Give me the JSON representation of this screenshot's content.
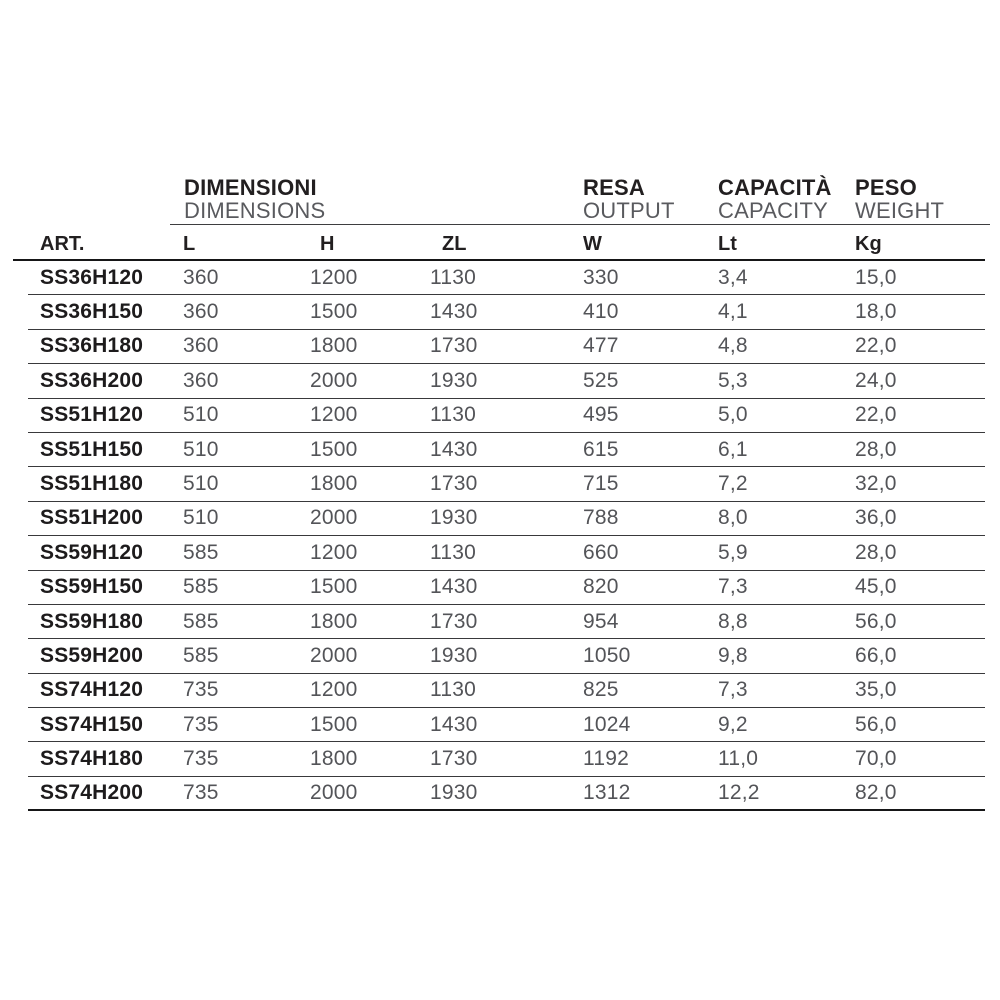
{
  "colors": {
    "background": "#ffffff",
    "text_dark": "#221f20",
    "text_gray": "#595a5e",
    "rule_dark": "#161617",
    "rule_thin": "#39393b"
  },
  "table": {
    "column_groups": [
      {
        "title": "DIMENSIONI",
        "subtitle": "DIMENSIONS"
      },
      {
        "title": "RESA",
        "subtitle": "OUTPUT"
      },
      {
        "title": "CAPACITÀ",
        "subtitle": "CAPACITY"
      },
      {
        "title": "PESO",
        "subtitle": "WEIGHT"
      }
    ],
    "columns": [
      "ART.",
      "L",
      "H",
      "ZL",
      "W",
      "Lt",
      "Kg"
    ],
    "rows": [
      {
        "art": "SS36H120",
        "l": "360",
        "h": "1200",
        "zl": "1130",
        "w": "330",
        "lt": "3,4",
        "kg": "15,0"
      },
      {
        "art": "SS36H150",
        "l": "360",
        "h": "1500",
        "zl": "1430",
        "w": "410",
        "lt": "4,1",
        "kg": "18,0"
      },
      {
        "art": "SS36H180",
        "l": "360",
        "h": "1800",
        "zl": "1730",
        "w": "477",
        "lt": "4,8",
        "kg": "22,0"
      },
      {
        "art": "SS36H200",
        "l": "360",
        "h": "2000",
        "zl": "1930",
        "w": "525",
        "lt": "5,3",
        "kg": "24,0"
      },
      {
        "art": "SS51H120",
        "l": "510",
        "h": "1200",
        "zl": "1130",
        "w": "495",
        "lt": "5,0",
        "kg": "22,0"
      },
      {
        "art": "SS51H150",
        "l": "510",
        "h": "1500",
        "zl": "1430",
        "w": "615",
        "lt": "6,1",
        "kg": "28,0"
      },
      {
        "art": "SS51H180",
        "l": "510",
        "h": "1800",
        "zl": "1730",
        "w": "715",
        "lt": "7,2",
        "kg": "32,0"
      },
      {
        "art": "SS51H200",
        "l": "510",
        "h": "2000",
        "zl": "1930",
        "w": "788",
        "lt": "8,0",
        "kg": "36,0"
      },
      {
        "art": "SS59H120",
        "l": "585",
        "h": "1200",
        "zl": "1130",
        "w": "660",
        "lt": "5,9",
        "kg": "28,0"
      },
      {
        "art": "SS59H150",
        "l": "585",
        "h": "1500",
        "zl": "1430",
        "w": "820",
        "lt": "7,3",
        "kg": "45,0"
      },
      {
        "art": "SS59H180",
        "l": "585",
        "h": "1800",
        "zl": "1730",
        "w": "954",
        "lt": "8,8",
        "kg": "56,0"
      },
      {
        "art": "SS59H200",
        "l": "585",
        "h": "2000",
        "zl": "1930",
        "w": "1050",
        "lt": "9,8",
        "kg": "66,0"
      },
      {
        "art": "SS74H120",
        "l": "735",
        "h": "1200",
        "zl": "1130",
        "w": "825",
        "lt": "7,3",
        "kg": "35,0"
      },
      {
        "art": "SS74H150",
        "l": "735",
        "h": "1500",
        "zl": "1430",
        "w": "1024",
        "lt": "9,2",
        "kg": "56,0"
      },
      {
        "art": "SS74H180",
        "l": "735",
        "h": "1800",
        "zl": "1730",
        "w": "1192",
        "lt": "11,0",
        "kg": "70,0"
      },
      {
        "art": "SS74H200",
        "l": "735",
        "h": "2000",
        "zl": "1930",
        "w": "1312",
        "lt": "12,2",
        "kg": "82,0"
      }
    ]
  }
}
